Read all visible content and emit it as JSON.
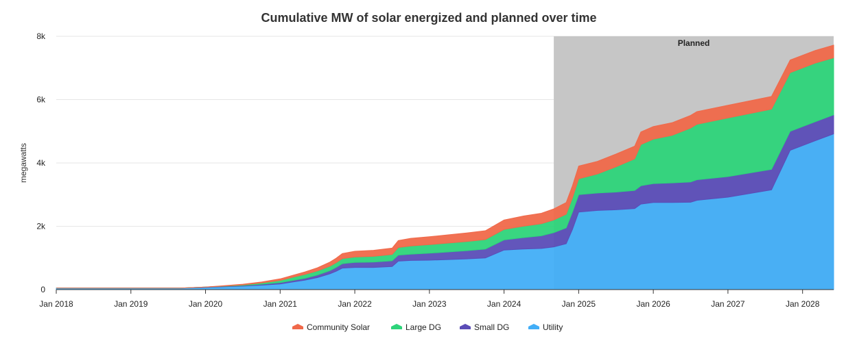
{
  "chart_data": {
    "type": "area",
    "stacked": true,
    "title": "Cumulative MW of solar energized and planned over time",
    "xlabel": "",
    "ylabel": "megawatts",
    "ylim": [
      0,
      8000
    ],
    "y_ticks": [
      0,
      2000,
      4000,
      6000,
      8000
    ],
    "y_tick_labels": [
      "0",
      "2k",
      "4k",
      "6k",
      "8k"
    ],
    "x_ticks": [
      "2018-01",
      "2019-01",
      "2020-01",
      "2021-01",
      "2022-01",
      "2023-01",
      "2024-01",
      "2025-01",
      "2026-01",
      "2027-01",
      "2028-01"
    ],
    "x_tick_labels": [
      "Jan 2018",
      "Jan 2019",
      "Jan 2020",
      "Jan 2021",
      "Jan 2022",
      "Jan 2023",
      "Jan 2024",
      "Jan 2025",
      "Jan 2026",
      "Jan 2027",
      "Jan 2028"
    ],
    "grid": true,
    "legend_position": "bottom",
    "planned_band": {
      "label": "Planned",
      "start": "2024-09",
      "end": "2028-06",
      "color": "#c6c6c6"
    },
    "x": [
      "2018-01",
      "2018-07",
      "2019-01",
      "2019-06",
      "2019-09",
      "2020-01",
      "2020-04",
      "2020-07",
      "2020-10",
      "2021-01",
      "2021-03",
      "2021-05",
      "2021-07",
      "2021-09",
      "2021-10",
      "2021-11",
      "2022-01",
      "2022-04",
      "2022-07",
      "2022-08",
      "2022-10",
      "2023-01",
      "2023-04",
      "2023-07",
      "2023-10",
      "2024-01",
      "2024-04",
      "2024-07",
      "2024-09",
      "2024-11",
      "2024-12",
      "2025-01",
      "2025-04",
      "2025-07",
      "2025-10",
      "2025-11",
      "2026-01",
      "2026-04",
      "2026-07",
      "2026-08",
      "2027-01",
      "2027-08",
      "2027-11",
      "2028-03",
      "2028-06"
    ],
    "series": [
      {
        "name": "Utility",
        "color": "#42aef7",
        "values": [
          50,
          50,
          50,
          50,
          50,
          70,
          90,
          110,
          140,
          180,
          240,
          300,
          380,
          500,
          580,
          680,
          700,
          700,
          730,
          900,
          920,
          930,
          950,
          970,
          1000,
          1250,
          1280,
          1300,
          1350,
          1450,
          1900,
          2450,
          2500,
          2520,
          2560,
          2700,
          2750,
          2750,
          2760,
          2820,
          2920,
          3150,
          4400,
          4700,
          4920
        ]
      },
      {
        "name": "Small DG",
        "color": "#5b4db7",
        "values": [
          0,
          0,
          0,
          0,
          0,
          10,
          15,
          20,
          30,
          40,
          50,
          60,
          80,
          100,
          120,
          140,
          160,
          170,
          180,
          190,
          200,
          220,
          240,
          260,
          280,
          320,
          360,
          400,
          450,
          500,
          550,
          550,
          550,
          560,
          570,
          580,
          600,
          620,
          640,
          650,
          650,
          650,
          600,
          600,
          600
        ]
      },
      {
        "name": "Large DG",
        "color": "#2ed47a",
        "values": [
          0,
          0,
          0,
          0,
          0,
          0,
          10,
          20,
          40,
          70,
          100,
          120,
          130,
          140,
          150,
          160,
          170,
          180,
          200,
          240,
          260,
          270,
          280,
          290,
          300,
          330,
          360,
          380,
          400,
          430,
          450,
          500,
          600,
          800,
          1000,
          1300,
          1400,
          1500,
          1700,
          1750,
          1850,
          1900,
          1850,
          1850,
          1800
        ]
      },
      {
        "name": "Community Solar",
        "color": "#f0694a",
        "values": [
          0,
          0,
          0,
          0,
          0,
          0,
          10,
          20,
          30,
          50,
          60,
          80,
          100,
          130,
          140,
          160,
          180,
          190,
          200,
          220,
          240,
          250,
          260,
          270,
          280,
          300,
          320,
          330,
          350,
          370,
          380,
          400,
          400,
          400,
          400,
          400,
          400,
          400,
          400,
          400,
          400,
          400,
          400,
          400,
          400
        ]
      }
    ]
  }
}
